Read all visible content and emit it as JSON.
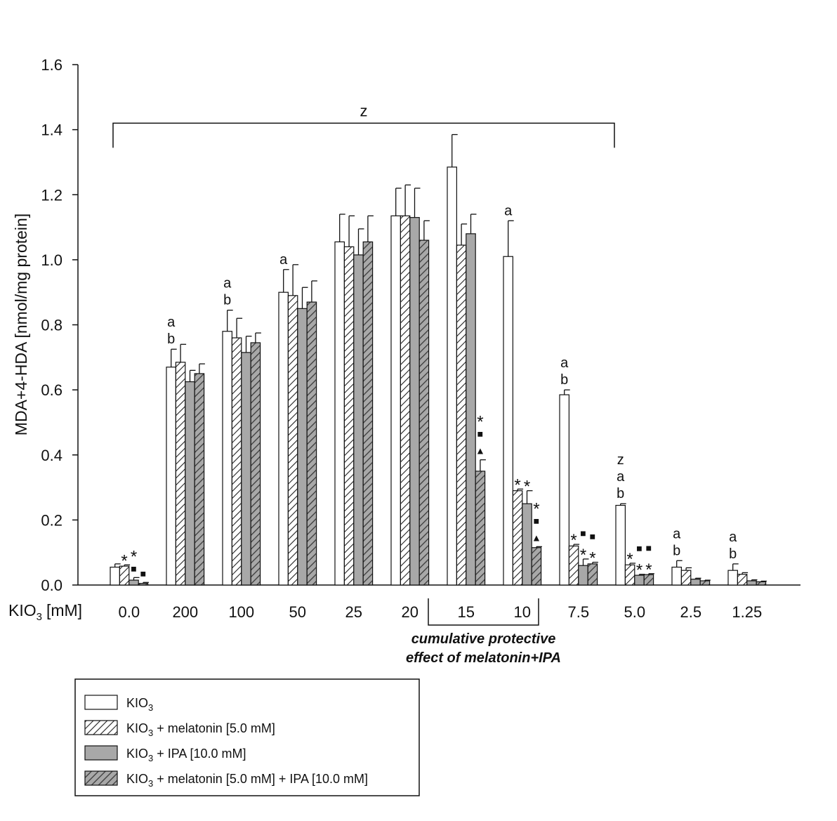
{
  "chart_data": {
    "type": "bar",
    "ylabel": "MDA+4-HDA [nmol/mg protein]",
    "xlabel": "KIO3 [mM]",
    "xlabel_main": "KIO",
    "xlabel_sub": "3",
    "xlabel_unit": "[mM]",
    "ylim": [
      0,
      1.6
    ],
    "yticks": [
      "0.0",
      "0.2",
      "0.4",
      "0.6",
      "0.8",
      "1.0",
      "1.2",
      "1.4",
      "1.6"
    ],
    "categories": [
      "0.0",
      "200",
      "100",
      "50",
      "25",
      "20",
      "15",
      "10",
      "7.5",
      "5.0",
      "2.5",
      "1.25"
    ],
    "series": [
      {
        "name": "KIO3",
        "values": [
          0.055,
          0.67,
          0.78,
          0.9,
          1.055,
          1.135,
          1.285,
          1.01,
          0.585,
          0.245,
          0.055,
          0.045
        ],
        "errors": [
          0.01,
          0.055,
          0.065,
          0.07,
          0.085,
          0.085,
          0.1,
          0.11,
          0.015,
          0.005,
          0.02,
          0.02
        ]
      },
      {
        "name": "KIO3 + melatonin [5.0 mM]",
        "values": [
          0.058,
          0.685,
          0.76,
          0.89,
          1.04,
          1.135,
          1.045,
          0.29,
          0.12,
          0.062,
          0.045,
          0.033
        ],
        "errors": [
          0.004,
          0.055,
          0.06,
          0.095,
          0.095,
          0.095,
          0.065,
          0.005,
          0.005,
          0.005,
          0.008,
          0.005
        ]
      },
      {
        "name": "KIO3 + IPA [10.0 mM]",
        "values": [
          0.015,
          0.625,
          0.715,
          0.85,
          1.015,
          1.13,
          1.08,
          0.25,
          0.06,
          0.03,
          0.018,
          0.013
        ],
        "errors": [
          0.008,
          0.035,
          0.05,
          0.065,
          0.08,
          0.09,
          0.06,
          0.04,
          0.02,
          0.003,
          0.003,
          0.003
        ]
      },
      {
        "name": "KIO3 + melatonin [5.0 mM] + IPA [10.0 mM]",
        "values": [
          0.005,
          0.65,
          0.745,
          0.87,
          1.055,
          1.06,
          0.35,
          0.115,
          0.065,
          0.032,
          0.013,
          0.01
        ],
        "errors": [
          0.003,
          0.03,
          0.03,
          0.065,
          0.08,
          0.06,
          0.035,
          0.003,
          0.005,
          0.003,
          0.002,
          0.002
        ]
      }
    ],
    "legend_entries": [
      {
        "main": "KIO",
        "sub": "3",
        "rest": ""
      },
      {
        "main": "KIO",
        "sub": "3",
        "rest": " + melatonin [5.0 mM]"
      },
      {
        "main": "KIO",
        "sub": "3",
        "rest": " + IPA [10.0 mM]"
      },
      {
        "main": "KIO",
        "sub": "3",
        "rest": " + melatonin [5.0 mM] + IPA [10.0 mM]"
      }
    ],
    "legend_placement": "bottom-left",
    "grid": false,
    "annotations": [
      {
        "cat": 0,
        "series": 1,
        "symbols": [
          "*"
        ]
      },
      {
        "cat": 0,
        "series": 2,
        "symbols": [
          "*",
          "■"
        ]
      },
      {
        "cat": 0,
        "series": 3,
        "symbols": [
          "■"
        ]
      },
      {
        "cat": 1,
        "series": 0,
        "symbols": [
          "a",
          "b"
        ]
      },
      {
        "cat": 2,
        "series": 0,
        "symbols": [
          "a",
          "b"
        ]
      },
      {
        "cat": 3,
        "series": 0,
        "symbols": [
          "a"
        ]
      },
      {
        "cat": 6,
        "series": 3,
        "symbols": [
          "*",
          "■",
          "▲"
        ]
      },
      {
        "cat": 7,
        "series": 0,
        "symbols": [
          "a"
        ]
      },
      {
        "cat": 7,
        "series": 1,
        "symbols": [
          "*"
        ]
      },
      {
        "cat": 7,
        "series": 2,
        "symbols": [
          "*"
        ]
      },
      {
        "cat": 7,
        "series": 3,
        "symbols": [
          "*",
          "■",
          "▲"
        ]
      },
      {
        "cat": 8,
        "series": 0,
        "symbols": [
          "a",
          "b"
        ]
      },
      {
        "cat": 8,
        "series": 1,
        "symbols": [
          "*"
        ]
      },
      {
        "cat": 8,
        "series": 2,
        "symbols": [
          "■",
          "*"
        ]
      },
      {
        "cat": 8,
        "series": 3,
        "symbols": [
          "■",
          "*"
        ]
      },
      {
        "cat": 9,
        "series": 0,
        "symbols": [
          "z",
          "a",
          "b"
        ]
      },
      {
        "cat": 9,
        "series": 1,
        "symbols": [
          "*"
        ]
      },
      {
        "cat": 9,
        "series": 2,
        "symbols": [
          "■",
          "*"
        ]
      },
      {
        "cat": 9,
        "series": 3,
        "symbols": [
          "■",
          "*"
        ]
      },
      {
        "cat": 10,
        "series": 0,
        "symbols": [
          "a",
          "b"
        ]
      },
      {
        "cat": 11,
        "series": 0,
        "symbols": [
          "a",
          "b"
        ]
      }
    ],
    "bracket_top": {
      "label": "z",
      "from_cat": 0,
      "to_cat": 9,
      "level": 1.42
    },
    "bracket_bottom": {
      "from_cat": 6,
      "to_cat": 7,
      "label_lines": [
        "cumulative protective",
        "effect of melatonin+IPA"
      ]
    }
  }
}
